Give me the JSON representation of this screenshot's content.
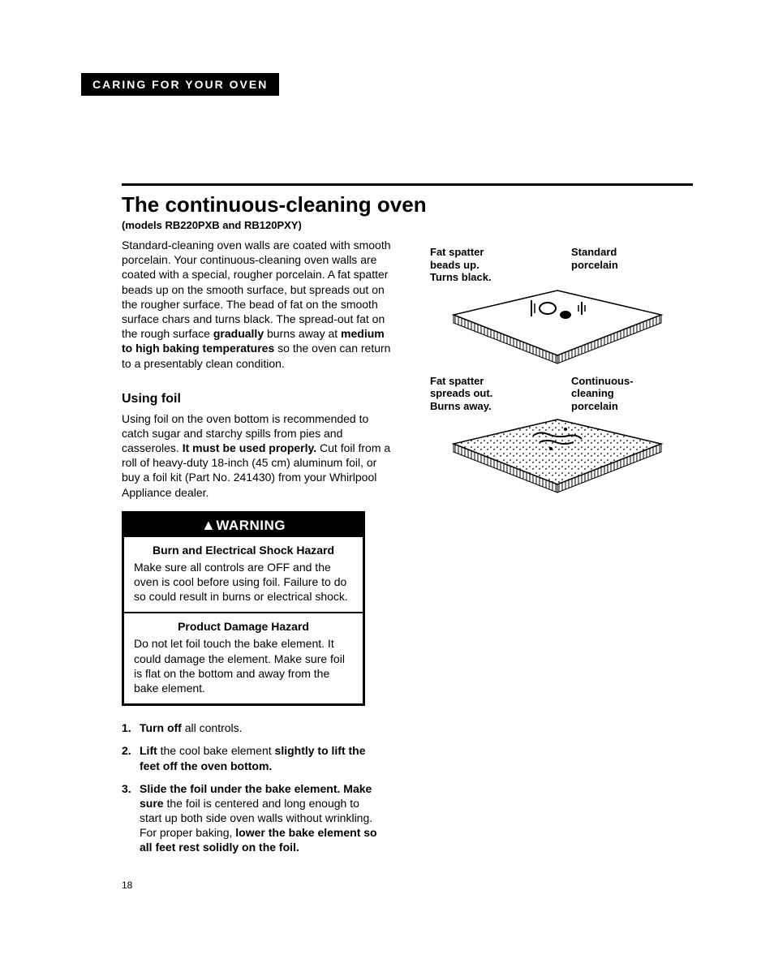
{
  "header": {
    "section": "CARING FOR YOUR OVEN"
  },
  "article": {
    "title": "The continuous-cleaning oven",
    "models": "(models RB220PXB and RB120PXY)",
    "intro_parts": [
      {
        "t": "Standard-cleaning oven walls are coated with smooth porcelain. Your continuous-cleaning oven walls are coated with a special, rougher porcelain. A fat spatter beads up on the smooth surface, but spreads out on the rougher surface. The bead of fat on the smooth surface chars and turns black. The spread-out fat on the rough surface ",
        "b": false
      },
      {
        "t": "gradually",
        "b": true
      },
      {
        "t": " burns away at ",
        "b": false
      },
      {
        "t": "medium to high baking temperatures",
        "b": true
      },
      {
        "t": " so the oven can return to a presentably clean condition.",
        "b": false
      }
    ],
    "foil": {
      "heading": "Using foil",
      "body_parts": [
        {
          "t": "Using foil on the oven bottom is recommended to catch sugar and starchy spills from pies and casseroles. ",
          "b": false
        },
        {
          "t": "It must be used properly.",
          "b": true
        },
        {
          "t": " Cut foil from a roll of heavy-duty 18-inch (45 cm) aluminum foil, or buy a foil kit (Part No. 241430) from your Whirlpool Appliance dealer.",
          "b": false
        }
      ]
    },
    "warning": {
      "header": "WARNING",
      "sections": [
        {
          "title": "Burn and Electrical Shock Hazard",
          "body": "Make sure all controls are OFF and the oven is cool before using foil. Failure to do so could result in burns or electrical shock."
        },
        {
          "title": "Product Damage Hazard",
          "body": "Do not let foil touch the bake element. It could damage the element. Make sure foil is flat on the bottom and away from the bake element."
        }
      ]
    },
    "steps": [
      [
        {
          "t": "Turn off",
          "b": true
        },
        {
          "t": " all controls.",
          "b": false
        }
      ],
      [
        {
          "t": "Lift",
          "b": true
        },
        {
          "t": " the cool bake element ",
          "b": false
        },
        {
          "t": "slightly to lift the feet off the oven bottom.",
          "b": true
        }
      ],
      [
        {
          "t": "Slide the foil under the bake element. Make sure",
          "b": true
        },
        {
          "t": " the foil is centered and long enough to start up both side oven walls without wrinkling. For proper baking, ",
          "b": false
        },
        {
          "t": "lower the bake element so all feet rest solidly on the foil.",
          "b": true
        }
      ]
    ]
  },
  "diagrams": {
    "top": {
      "left_label": "Fat spatter\nbeads up.\nTurns black.",
      "right_label": "Standard\nporcelain"
    },
    "bottom": {
      "left_label": "Fat spatter\nspreads out.\nBurns away.",
      "right_label": "Continuous-\ncleaning\nporcelain"
    },
    "colors": {
      "stroke": "#000000",
      "fill": "#ffffff",
      "hatch": "#000000"
    }
  },
  "page_number": "18"
}
